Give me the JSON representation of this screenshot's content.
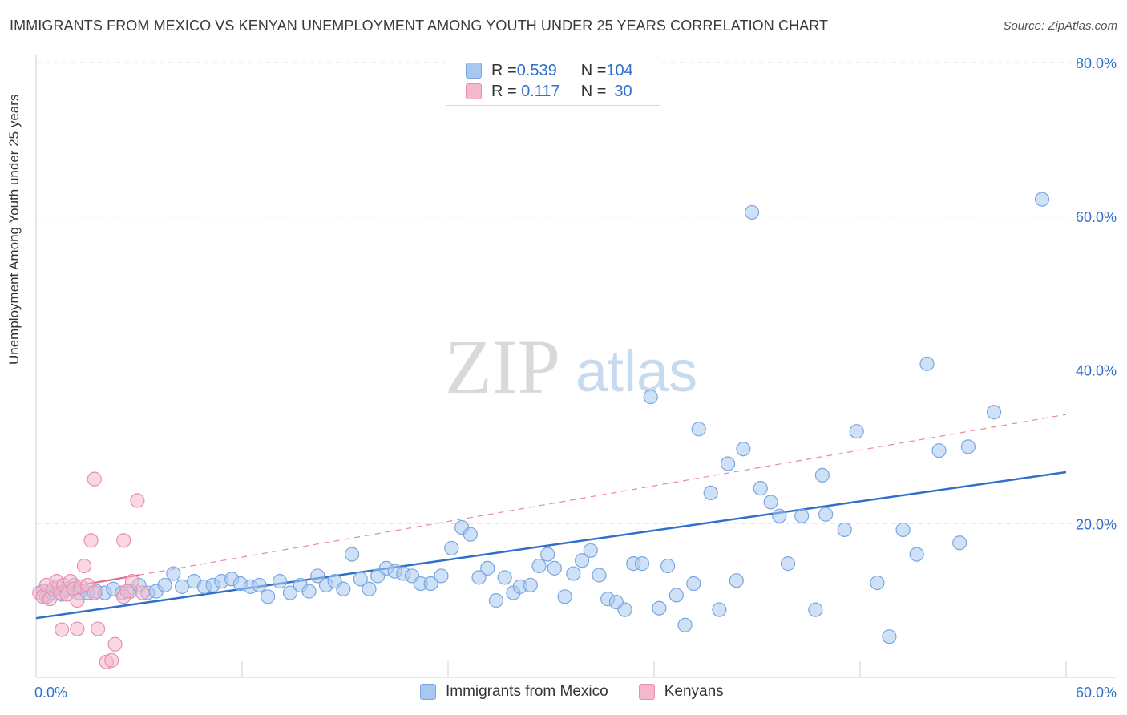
{
  "header": {
    "title": "IMMIGRANTS FROM MEXICO VS KENYAN UNEMPLOYMENT AMONG YOUTH UNDER 25 YEARS CORRELATION CHART",
    "source": "Source: ZipAtlas.com"
  },
  "watermark": {
    "zip": "ZIP",
    "atlas": "atlas"
  },
  "legend_top": {
    "rows": [
      {
        "r_label": "R = ",
        "r_value": "0.539",
        "n_label": "N = ",
        "n_value": "104"
      },
      {
        "r_label": "R = ",
        "r_value": "0.117",
        "n_label": "N = ",
        "n_value": "30"
      }
    ]
  },
  "chart_data": {
    "type": "scatter",
    "title": "IMMIGRANTS FROM MEXICO VS KENYAN UNEMPLOYMENT AMONG YOUTH UNDER 25 YEARS CORRELATION CHART",
    "xlabel": "",
    "ylabel": "Unemployment Among Youth under 25 years",
    "xlim": [
      0,
      60
    ],
    "ylim": [
      0,
      80
    ],
    "x_tick_labels": [
      "0.0%",
      "60.0%"
    ],
    "y_tick_labels": [
      {
        "value": 20,
        "label": "20.0%"
      },
      {
        "value": 40,
        "label": "40.0%"
      },
      {
        "value": 60,
        "label": "60.0%"
      },
      {
        "value": 80,
        "label": "80.0%"
      }
    ],
    "grid": true,
    "legend_position": "bottom",
    "series": [
      {
        "name": "Immigrants from Mexico",
        "color": "#a8c8f0",
        "stroke": "#7aa6e0",
        "trend_color": "#2f6fcb",
        "trend": {
          "x": [
            0,
            60
          ],
          "y": [
            7.7,
            26.7
          ],
          "style": "solid"
        },
        "points": [
          [
            0.4,
            11.2
          ],
          [
            0.6,
            10.5
          ],
          [
            0.9,
            11.0
          ],
          [
            1.2,
            11.8
          ],
          [
            1.5,
            10.8
          ],
          [
            1.8,
            11.5
          ],
          [
            2.2,
            12.0
          ],
          [
            2.5,
            11.0
          ],
          [
            3.0,
            11.0
          ],
          [
            3.5,
            11.2
          ],
          [
            4.0,
            11.0
          ],
          [
            4.5,
            11.5
          ],
          [
            5.0,
            11.0
          ],
          [
            5.5,
            11.2
          ],
          [
            6.0,
            12.0
          ],
          [
            6.5,
            11.0
          ],
          [
            7.0,
            11.2
          ],
          [
            7.5,
            12.0
          ],
          [
            8.0,
            13.5
          ],
          [
            8.5,
            11.8
          ],
          [
            9.2,
            12.5
          ],
          [
            9.8,
            11.8
          ],
          [
            10.3,
            12.0
          ],
          [
            10.8,
            12.5
          ],
          [
            11.4,
            12.8
          ],
          [
            11.9,
            12.2
          ],
          [
            12.5,
            11.8
          ],
          [
            13.0,
            12.0
          ],
          [
            13.5,
            10.5
          ],
          [
            14.2,
            12.5
          ],
          [
            14.8,
            11.0
          ],
          [
            15.4,
            12.0
          ],
          [
            15.9,
            11.2
          ],
          [
            16.4,
            13.2
          ],
          [
            16.9,
            12.0
          ],
          [
            17.4,
            12.5
          ],
          [
            17.9,
            11.5
          ],
          [
            18.4,
            16.0
          ],
          [
            18.9,
            12.8
          ],
          [
            19.4,
            11.5
          ],
          [
            19.9,
            13.2
          ],
          [
            20.4,
            14.2
          ],
          [
            20.9,
            13.8
          ],
          [
            21.4,
            13.5
          ],
          [
            21.9,
            13.2
          ],
          [
            22.4,
            12.2
          ],
          [
            23.0,
            12.2
          ],
          [
            23.6,
            13.2
          ],
          [
            24.2,
            16.8
          ],
          [
            24.8,
            19.5
          ],
          [
            25.3,
            18.6
          ],
          [
            25.8,
            13.0
          ],
          [
            26.3,
            14.2
          ],
          [
            26.8,
            10.0
          ],
          [
            27.3,
            13.0
          ],
          [
            27.8,
            11.0
          ],
          [
            28.2,
            11.8
          ],
          [
            28.8,
            12.0
          ],
          [
            29.3,
            14.5
          ],
          [
            29.8,
            16.0
          ],
          [
            30.2,
            14.2
          ],
          [
            30.8,
            10.5
          ],
          [
            31.3,
            13.5
          ],
          [
            31.8,
            15.2
          ],
          [
            32.3,
            16.5
          ],
          [
            32.8,
            13.3
          ],
          [
            33.3,
            10.2
          ],
          [
            33.8,
            9.8
          ],
          [
            34.3,
            8.8
          ],
          [
            34.8,
            14.8
          ],
          [
            35.3,
            14.8
          ],
          [
            35.8,
            36.5
          ],
          [
            36.3,
            9.0
          ],
          [
            36.8,
            14.5
          ],
          [
            37.3,
            10.7
          ],
          [
            37.8,
            6.8
          ],
          [
            38.3,
            12.2
          ],
          [
            38.6,
            32.3
          ],
          [
            39.3,
            24.0
          ],
          [
            39.8,
            8.8
          ],
          [
            40.3,
            27.8
          ],
          [
            40.8,
            12.6
          ],
          [
            41.2,
            29.7
          ],
          [
            41.7,
            60.5
          ],
          [
            42.2,
            24.6
          ],
          [
            42.8,
            22.8
          ],
          [
            43.3,
            21.0
          ],
          [
            43.8,
            14.8
          ],
          [
            44.6,
            21.0
          ],
          [
            45.4,
            8.8
          ],
          [
            45.8,
            26.3
          ],
          [
            46.0,
            21.2
          ],
          [
            47.1,
            19.2
          ],
          [
            47.8,
            32.0
          ],
          [
            49.0,
            12.3
          ],
          [
            49.7,
            5.3
          ],
          [
            50.5,
            19.2
          ],
          [
            51.3,
            16.0
          ],
          [
            51.9,
            40.8
          ],
          [
            52.6,
            29.5
          ],
          [
            53.8,
            17.5
          ],
          [
            54.3,
            30.0
          ],
          [
            55.8,
            34.5
          ],
          [
            58.6,
            62.2
          ]
        ]
      },
      {
        "name": "Kenyans",
        "color": "#f4b8cc",
        "stroke": "#e890ac",
        "trend_color": "#e06a90",
        "trend": {
          "x": [
            0,
            60
          ],
          "y": [
            11.0,
            34.2
          ],
          "style": "dashed",
          "solid_until": 6.0
        },
        "points": [
          [
            0.2,
            11.0
          ],
          [
            0.4,
            10.5
          ],
          [
            0.6,
            12.0
          ],
          [
            0.8,
            10.2
          ],
          [
            1.0,
            11.5
          ],
          [
            1.2,
            12.5
          ],
          [
            1.4,
            11.0
          ],
          [
            1.6,
            12.0
          ],
          [
            1.8,
            10.8
          ],
          [
            2.0,
            12.5
          ],
          [
            2.2,
            11.5
          ],
          [
            2.4,
            10.0
          ],
          [
            2.6,
            11.8
          ],
          [
            2.8,
            14.5
          ],
          [
            3.0,
            12.0
          ],
          [
            3.2,
            17.8
          ],
          [
            3.4,
            11.0
          ],
          [
            3.6,
            6.3
          ],
          [
            2.4,
            6.3
          ],
          [
            3.4,
            25.8
          ],
          [
            4.1,
            2.0
          ],
          [
            4.6,
            4.3
          ],
          [
            5.1,
            10.5
          ],
          [
            5.6,
            12.5
          ],
          [
            5.1,
            17.8
          ],
          [
            5.3,
            11.2
          ],
          [
            6.2,
            11.0
          ],
          [
            1.5,
            6.2
          ],
          [
            4.4,
            2.2
          ],
          [
            5.9,
            23.0
          ]
        ]
      }
    ]
  }
}
